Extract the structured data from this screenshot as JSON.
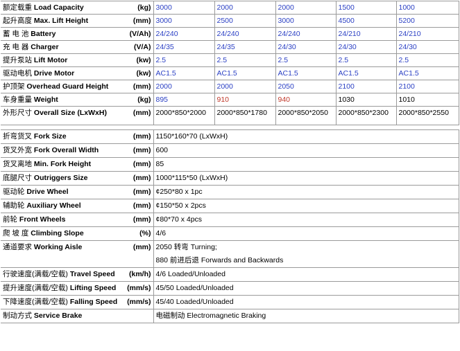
{
  "spec_rows": [
    {
      "cn": "额定载重",
      "en": "Load Capacity",
      "unit": "(kg)",
      "values": [
        "3000",
        "2000",
        "2000",
        "1500",
        "1000"
      ],
      "color": "#2a3fc4"
    },
    {
      "cn": "起升高度",
      "en": "Max. Lift Height",
      "unit": "(mm)",
      "values": [
        "3000",
        "2500",
        "3000",
        "4500",
        "5200"
      ],
      "color": "#2a3fc4"
    },
    {
      "cn": "蓄 电 池",
      "en": "Battery",
      "unit": "(V/Ah)",
      "values": [
        "24/240",
        "24/240",
        "24/240",
        "24/210",
        "24/210"
      ],
      "color": "#2a3fc4"
    },
    {
      "cn": "充 电 器",
      "en": "Charger",
      "unit": "(V/A)",
      "values": [
        "24/35",
        "24/35",
        "24/30",
        "24/30",
        "24/30"
      ],
      "color": "#2a3fc4"
    },
    {
      "cn": "提升泵站",
      "en": "Lift Motor",
      "unit": "(kw)",
      "values": [
        "2.5",
        "2.5",
        "2.5",
        "2.5",
        "2.5"
      ],
      "color": "#2a3fc4"
    },
    {
      "cn": "驱动电机",
      "en": "Drive Motor",
      "unit": "(kw)",
      "values": [
        "AC1.5",
        "AC1.5",
        "AC1.5",
        "AC1.5",
        "AC1.5"
      ],
      "color": "#2a3fc4"
    },
    {
      "cn": "护顶架",
      "en": "Overhead Guard Height",
      "unit": "(mm)",
      "values": [
        "2000",
        "2000",
        "2050",
        "2100",
        "2100"
      ],
      "color": "#2a3fc4"
    },
    {
      "cn": "车身重量",
      "en": "Weight",
      "unit": "(kg)",
      "values": [
        "895",
        "910",
        "940",
        "1030",
        "1010"
      ],
      "colors": [
        "#2a3fc4",
        "#c0392b",
        "#c0392b",
        "#000000",
        "#000000"
      ]
    },
    {
      "cn": "外形尺寸",
      "en": "Overall Size (LxWxH)",
      "unit": "(mm)",
      "values": [
        "2000*850*2000",
        "2000*850*1780",
        "2000*850*2050",
        "2000*850*2300",
        "2000*850*2550"
      ],
      "color": "#000000"
    }
  ],
  "common_rows": [
    {
      "cn": "折弯货叉",
      "en": "Fork Size",
      "unit": "(mm)",
      "lines": [
        "1150*160*70 (LxWxH)"
      ]
    },
    {
      "cn": "货叉外宽",
      "en": "Fork Overall Width",
      "unit": "(mm)",
      "lines": [
        "600"
      ]
    },
    {
      "cn": "货叉离地",
      "en": "Min. Fork Height",
      "unit": "(mm)",
      "lines": [
        "85"
      ]
    },
    {
      "cn": "底腿尺寸",
      "en": "Outriggers Size",
      "unit": "(mm)",
      "lines": [
        "1000*115*50 (LxWxH)"
      ]
    },
    {
      "cn": "驱动轮",
      "en": "Drive Wheel",
      "unit": "(mm)",
      "lines": [
        "¢250*80 x 1pc"
      ]
    },
    {
      "cn": "辅助轮",
      "en": "Auxiliary Wheel",
      "unit": "(mm)",
      "lines": [
        "¢150*50 x 2pcs"
      ]
    },
    {
      "cn": "前轮",
      "en": "Front Wheels",
      "unit": "(mm)",
      "lines": [
        "¢80*70 x 4pcs"
      ]
    },
    {
      "cn": "爬 坡 度",
      "en": "Climbing Slope",
      "unit": "(%)",
      "lines": [
        "4/6"
      ]
    },
    {
      "cn": "通道要求",
      "en": "Working Aisle",
      "unit": "(mm)",
      "lines": [
        "2050 转弯 Turning;",
        "880 前进后退 Forwards and Backwards"
      ]
    },
    {
      "cn": "行驶速度(满载/空载)",
      "en": "Travel Speed",
      "unit": "(km/h)",
      "lines": [
        "4/6 Loaded/Unloaded"
      ]
    },
    {
      "cn": "提升速度(满载/空载)",
      "en": "Lifting Speed",
      "unit": "(mm/s)",
      "lines": [
        "45/50 Loaded/Unloaded"
      ]
    },
    {
      "cn": "下降速度(满载/空载)",
      "en": "Falling Speed",
      "unit": "(mm/s)",
      "lines": [
        "45/40 Loaded/Unloaded"
      ]
    },
    {
      "cn": "制动方式",
      "en": "Service Brake",
      "lines": [
        "电磁制动 Electromagnetic Braking"
      ]
    }
  ]
}
